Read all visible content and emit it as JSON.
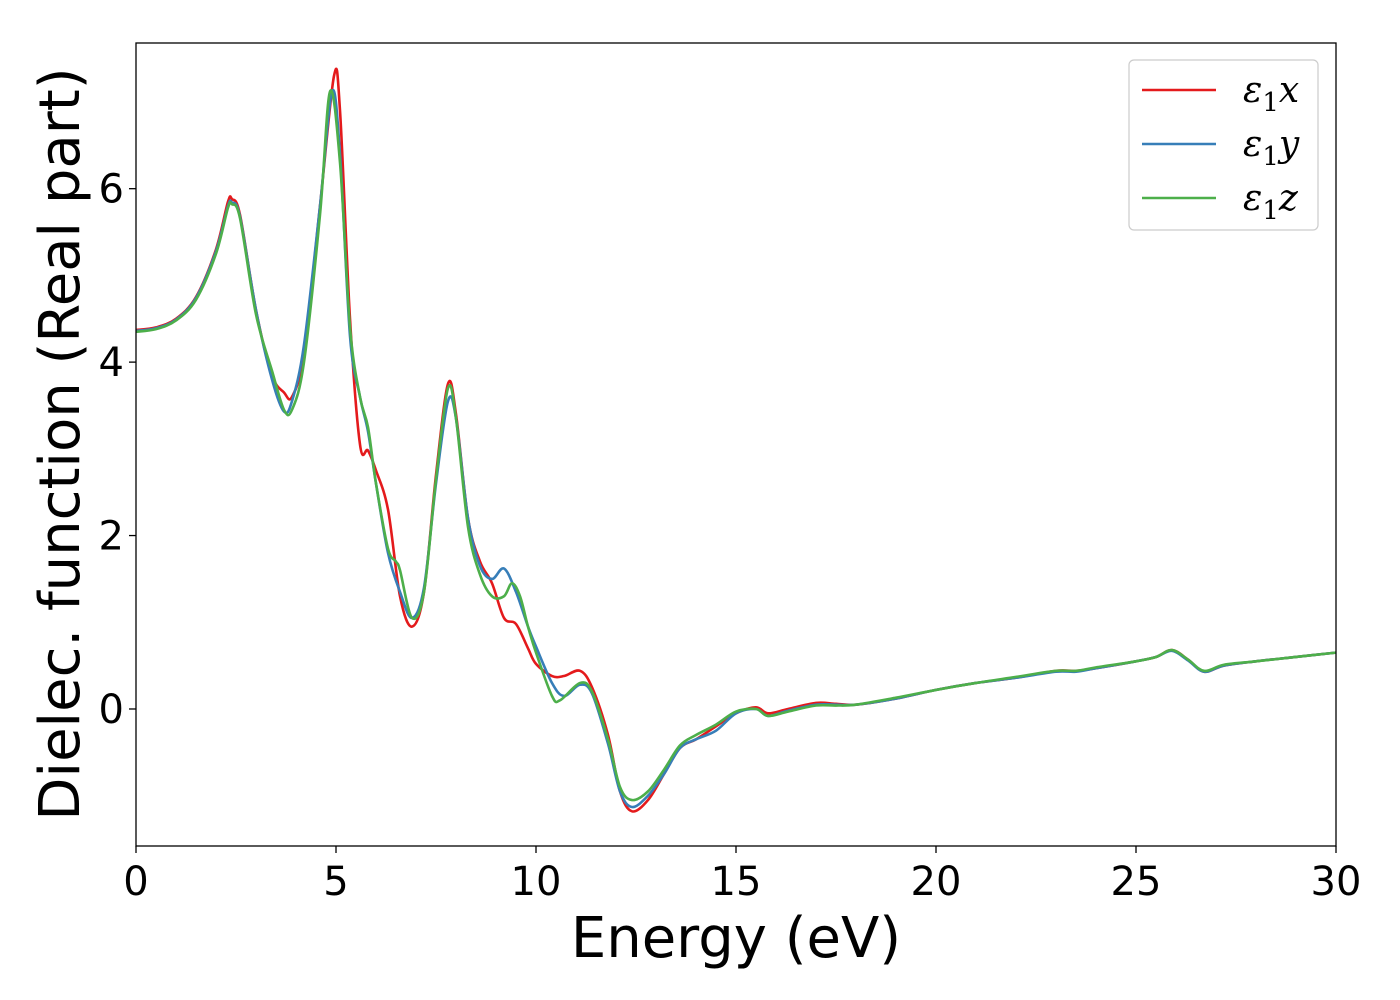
{
  "chart_data": {
    "type": "line",
    "title": "",
    "xlabel": "Energy (eV)",
    "ylabel": "Dielec. function (Real part)",
    "xlim": [
      0,
      30
    ],
    "ylim": [
      -1.58,
      7.68
    ],
    "xticks": [
      0,
      5,
      10,
      15,
      20,
      25,
      30
    ],
    "yticks": [
      0,
      2,
      4,
      6
    ],
    "grid": false,
    "legend_position": "top-right",
    "series": [
      {
        "name": "ε₁x",
        "legend_main": "ε",
        "legend_sub": "1",
        "legend_tail": "x",
        "color": "#e41a1c",
        "points": [
          [
            0,
            4.37
          ],
          [
            0.5,
            4.4
          ],
          [
            1.0,
            4.5
          ],
          [
            1.5,
            4.75
          ],
          [
            2.0,
            5.3
          ],
          [
            2.3,
            5.85
          ],
          [
            2.4,
            5.88
          ],
          [
            2.6,
            5.7
          ],
          [
            3.0,
            4.6
          ],
          [
            3.4,
            3.85
          ],
          [
            3.7,
            3.65
          ],
          [
            3.9,
            3.6
          ],
          [
            4.2,
            4.1
          ],
          [
            4.6,
            5.8
          ],
          [
            4.95,
            7.3
          ],
          [
            5.1,
            6.9
          ],
          [
            5.35,
            4.5
          ],
          [
            5.6,
            3.05
          ],
          [
            5.8,
            2.98
          ],
          [
            6.0,
            2.75
          ],
          [
            6.3,
            2.3
          ],
          [
            6.6,
            1.3
          ],
          [
            6.9,
            0.95
          ],
          [
            7.2,
            1.35
          ],
          [
            7.5,
            2.7
          ],
          [
            7.8,
            3.75
          ],
          [
            8.0,
            3.4
          ],
          [
            8.3,
            2.2
          ],
          [
            8.6,
            1.7
          ],
          [
            8.9,
            1.45
          ],
          [
            9.2,
            1.05
          ],
          [
            9.5,
            0.98
          ],
          [
            9.8,
            0.7
          ],
          [
            10.0,
            0.52
          ],
          [
            10.4,
            0.38
          ],
          [
            10.7,
            0.38
          ],
          [
            11.1,
            0.44
          ],
          [
            11.4,
            0.25
          ],
          [
            11.8,
            -0.3
          ],
          [
            12.1,
            -0.95
          ],
          [
            12.4,
            -1.18
          ],
          [
            12.8,
            -1.05
          ],
          [
            13.2,
            -0.75
          ],
          [
            13.6,
            -0.45
          ],
          [
            14.0,
            -0.35
          ],
          [
            14.5,
            -0.2
          ],
          [
            15.0,
            -0.05
          ],
          [
            15.5,
            0.02
          ],
          [
            15.8,
            -0.05
          ],
          [
            16.3,
            0.0
          ],
          [
            17.0,
            0.07
          ],
          [
            17.5,
            0.06
          ],
          [
            18.0,
            0.05
          ],
          [
            19.0,
            0.12
          ],
          [
            20.0,
            0.22
          ],
          [
            21.0,
            0.3
          ],
          [
            22.0,
            0.36
          ],
          [
            23.0,
            0.44
          ],
          [
            23.5,
            0.44
          ],
          [
            24.0,
            0.47
          ],
          [
            25.0,
            0.55
          ],
          [
            25.5,
            0.6
          ],
          [
            25.9,
            0.68
          ],
          [
            26.3,
            0.57
          ],
          [
            26.7,
            0.43
          ],
          [
            27.2,
            0.5
          ],
          [
            28.0,
            0.55
          ],
          [
            29.0,
            0.6
          ],
          [
            30.0,
            0.65
          ]
        ]
      },
      {
        "name": "ε₁y",
        "legend_main": "ε",
        "legend_sub": "1",
        "legend_tail": "y",
        "color": "#377eb8",
        "points": [
          [
            0,
            4.36
          ],
          [
            0.5,
            4.39
          ],
          [
            1.0,
            4.49
          ],
          [
            1.5,
            4.74
          ],
          [
            2.0,
            5.28
          ],
          [
            2.3,
            5.8
          ],
          [
            2.4,
            5.84
          ],
          [
            2.6,
            5.68
          ],
          [
            3.0,
            4.6
          ],
          [
            3.4,
            3.8
          ],
          [
            3.7,
            3.43
          ],
          [
            3.9,
            3.55
          ],
          [
            4.2,
            4.2
          ],
          [
            4.6,
            5.8
          ],
          [
            4.9,
            7.12
          ],
          [
            5.1,
            6.4
          ],
          [
            5.35,
            4.3
          ],
          [
            5.6,
            3.6
          ],
          [
            5.8,
            3.2
          ],
          [
            6.0,
            2.6
          ],
          [
            6.3,
            1.8
          ],
          [
            6.6,
            1.35
          ],
          [
            6.9,
            1.05
          ],
          [
            7.2,
            1.4
          ],
          [
            7.5,
            2.6
          ],
          [
            7.8,
            3.55
          ],
          [
            8.0,
            3.35
          ],
          [
            8.3,
            2.2
          ],
          [
            8.6,
            1.65
          ],
          [
            8.9,
            1.5
          ],
          [
            9.2,
            1.62
          ],
          [
            9.5,
            1.35
          ],
          [
            9.8,
            0.95
          ],
          [
            10.0,
            0.72
          ],
          [
            10.4,
            0.3
          ],
          [
            10.7,
            0.15
          ],
          [
            11.1,
            0.28
          ],
          [
            11.4,
            0.18
          ],
          [
            11.8,
            -0.4
          ],
          [
            12.1,
            -0.95
          ],
          [
            12.4,
            -1.13
          ],
          [
            12.8,
            -1.0
          ],
          [
            13.2,
            -0.75
          ],
          [
            13.6,
            -0.45
          ],
          [
            14.0,
            -0.35
          ],
          [
            14.5,
            -0.25
          ],
          [
            15.0,
            -0.05
          ],
          [
            15.5,
            0.0
          ],
          [
            15.8,
            -0.08
          ],
          [
            16.3,
            -0.02
          ],
          [
            17.0,
            0.05
          ],
          [
            17.5,
            0.05
          ],
          [
            18.0,
            0.05
          ],
          [
            19.0,
            0.12
          ],
          [
            20.0,
            0.22
          ],
          [
            21.0,
            0.3
          ],
          [
            22.0,
            0.36
          ],
          [
            23.0,
            0.43
          ],
          [
            23.5,
            0.43
          ],
          [
            24.0,
            0.47
          ],
          [
            25.0,
            0.55
          ],
          [
            25.5,
            0.6
          ],
          [
            25.9,
            0.67
          ],
          [
            26.3,
            0.56
          ],
          [
            26.7,
            0.43
          ],
          [
            27.2,
            0.5
          ],
          [
            28.0,
            0.55
          ],
          [
            29.0,
            0.6
          ],
          [
            30.0,
            0.65
          ]
        ]
      },
      {
        "name": "ε₁z",
        "legend_main": "ε",
        "legend_sub": "1",
        "legend_tail": "z",
        "color": "#4daf4a",
        "points": [
          [
            0,
            4.35
          ],
          [
            0.5,
            4.38
          ],
          [
            1.0,
            4.48
          ],
          [
            1.5,
            4.72
          ],
          [
            2.0,
            5.25
          ],
          [
            2.3,
            5.78
          ],
          [
            2.4,
            5.82
          ],
          [
            2.6,
            5.66
          ],
          [
            3.0,
            4.55
          ],
          [
            3.4,
            3.9
          ],
          [
            3.7,
            3.45
          ],
          [
            3.9,
            3.45
          ],
          [
            4.2,
            4.0
          ],
          [
            4.6,
            5.7
          ],
          [
            4.85,
            7.12
          ],
          [
            5.1,
            6.3
          ],
          [
            5.35,
            4.4
          ],
          [
            5.6,
            3.6
          ],
          [
            5.8,
            3.25
          ],
          [
            6.0,
            2.6
          ],
          [
            6.3,
            1.85
          ],
          [
            6.5,
            1.7
          ],
          [
            6.6,
            1.6
          ],
          [
            6.9,
            1.05
          ],
          [
            7.2,
            1.35
          ],
          [
            7.5,
            2.65
          ],
          [
            7.8,
            3.7
          ],
          [
            8.0,
            3.35
          ],
          [
            8.3,
            2.1
          ],
          [
            8.6,
            1.55
          ],
          [
            8.9,
            1.3
          ],
          [
            9.2,
            1.3
          ],
          [
            9.4,
            1.45
          ],
          [
            9.6,
            1.3
          ],
          [
            9.8,
            0.95
          ],
          [
            10.0,
            0.65
          ],
          [
            10.4,
            0.15
          ],
          [
            10.6,
            0.1
          ],
          [
            11.1,
            0.3
          ],
          [
            11.4,
            0.2
          ],
          [
            11.8,
            -0.35
          ],
          [
            12.1,
            -0.9
          ],
          [
            12.4,
            -1.05
          ],
          [
            12.8,
            -0.95
          ],
          [
            13.2,
            -0.7
          ],
          [
            13.6,
            -0.42
          ],
          [
            14.0,
            -0.3
          ],
          [
            14.5,
            -0.18
          ],
          [
            15.0,
            -0.03
          ],
          [
            15.5,
            0.0
          ],
          [
            15.8,
            -0.08
          ],
          [
            16.3,
            -0.03
          ],
          [
            17.0,
            0.04
          ],
          [
            17.5,
            0.04
          ],
          [
            18.0,
            0.05
          ],
          [
            19.0,
            0.13
          ],
          [
            20.0,
            0.22
          ],
          [
            21.0,
            0.3
          ],
          [
            22.0,
            0.37
          ],
          [
            23.0,
            0.44
          ],
          [
            23.5,
            0.44
          ],
          [
            24.0,
            0.48
          ],
          [
            25.0,
            0.55
          ],
          [
            25.5,
            0.6
          ],
          [
            25.9,
            0.68
          ],
          [
            26.3,
            0.57
          ],
          [
            26.7,
            0.44
          ],
          [
            27.2,
            0.51
          ],
          [
            28.0,
            0.55
          ],
          [
            29.0,
            0.6
          ],
          [
            30.0,
            0.65
          ]
        ]
      }
    ]
  }
}
